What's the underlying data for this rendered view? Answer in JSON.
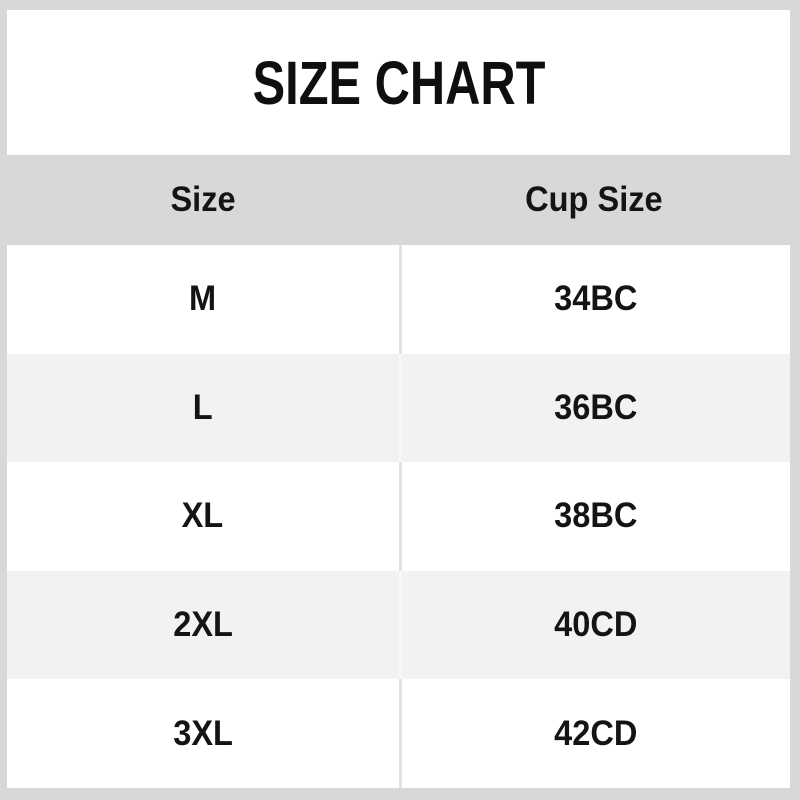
{
  "title": "SIZE CHART",
  "chart_data": {
    "type": "table",
    "title": "SIZE CHART",
    "columns": [
      "Size",
      "Cup Size"
    ],
    "rows": [
      [
        "M",
        "34BC"
      ],
      [
        "L",
        "36BC"
      ],
      [
        "XL",
        "38BC"
      ],
      [
        "2XL",
        "40CD"
      ],
      [
        "3XL",
        "42CD"
      ]
    ]
  },
  "colors": {
    "frame_bg": "#d8d8d8",
    "header_bg": "#d8d8d8",
    "row_bg": "#ffffff",
    "row_alt_bg": "#f2f2f2",
    "divider_on_white": "#e3e3e3",
    "divider_on_gray": "#f7f7f7",
    "text": "#141414"
  }
}
